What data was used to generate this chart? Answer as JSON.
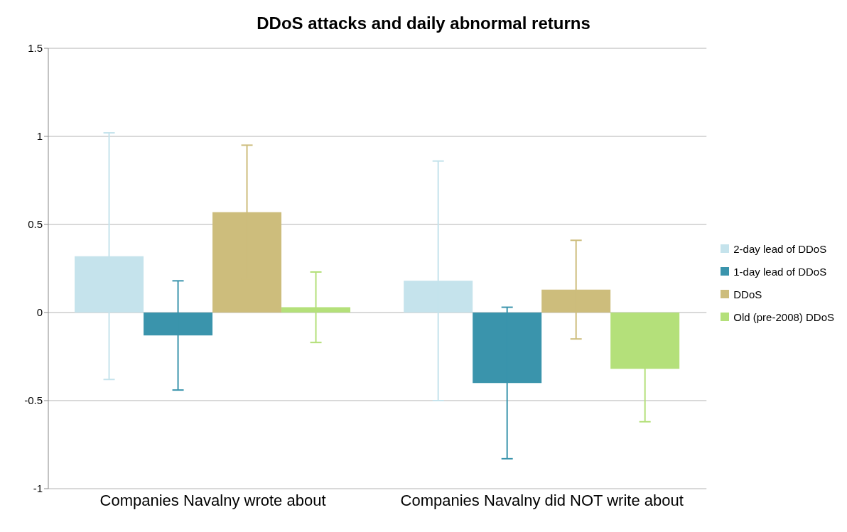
{
  "chart_data": {
    "type": "bar",
    "title": "DDoS attacks and daily abnormal returns",
    "categories": [
      "Companies Navalny wrote about",
      "Companies Navalny did NOT write about"
    ],
    "series": [
      {
        "name": "2-day lead of DDoS",
        "color": "#c5e3ec",
        "values": [
          0.32,
          0.18
        ],
        "errors": [
          0.7,
          0.68
        ]
      },
      {
        "name": "1-day lead of DDoS",
        "color": "#3a94ac",
        "values": [
          -0.13,
          -0.4
        ],
        "errors": [
          0.31,
          0.43
        ]
      },
      {
        "name": "DDoS",
        "color": "#cdbd7c",
        "values": [
          0.57,
          0.13
        ],
        "errors": [
          0.38,
          0.28
        ]
      },
      {
        "name": "Old (pre-2008) DDoS",
        "color": "#b4e07a",
        "values": [
          0.03,
          -0.32
        ],
        "errors": [
          0.2,
          0.3
        ]
      }
    ],
    "ylim": [
      -1,
      1.5
    ],
    "yticks": [
      -1,
      -0.5,
      0,
      0.5,
      1,
      1.5
    ],
    "grid": "y",
    "legend": "right"
  }
}
